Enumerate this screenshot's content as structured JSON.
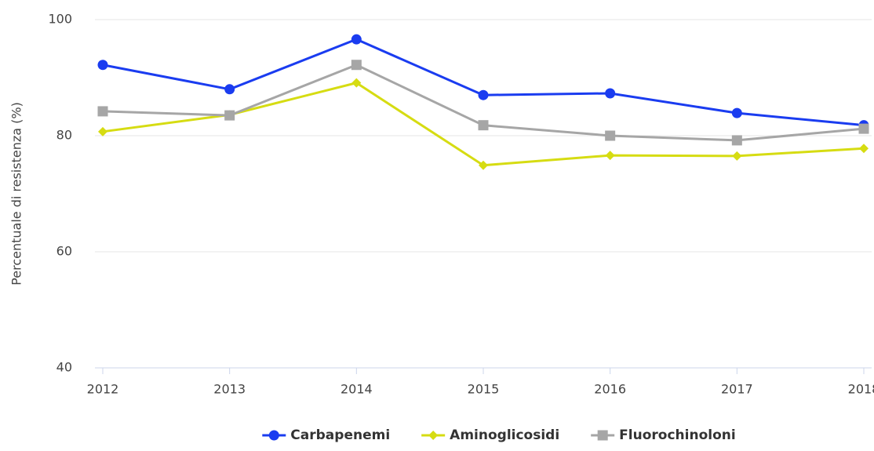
{
  "chart_data": {
    "type": "line",
    "y_label": "Percentuale di resistenza (%)",
    "categories": [
      "2012",
      "2013",
      "2014",
      "2015",
      "2016",
      "2017",
      "2018"
    ],
    "series": [
      {
        "name": "Carbapenemi",
        "color": "#1a3cf0",
        "marker": "circle",
        "values": [
          92.2,
          88.0,
          96.6,
          87.0,
          87.3,
          83.9,
          81.8
        ]
      },
      {
        "name": "Aminoglicosidi",
        "color": "#d6dc12",
        "marker": "diamond",
        "values": [
          80.7,
          83.6,
          89.1,
          74.9,
          76.6,
          76.5,
          77.8
        ]
      },
      {
        "name": "Fluorochinoloni",
        "color": "#a6a6a6",
        "marker": "square",
        "values": [
          84.2,
          83.5,
          92.2,
          81.8,
          80.0,
          79.2,
          81.2
        ]
      }
    ],
    "ylim": [
      40,
      100
    ],
    "yticks": [
      40,
      60,
      80,
      100
    ],
    "grid": true,
    "legend": "bottom"
  }
}
